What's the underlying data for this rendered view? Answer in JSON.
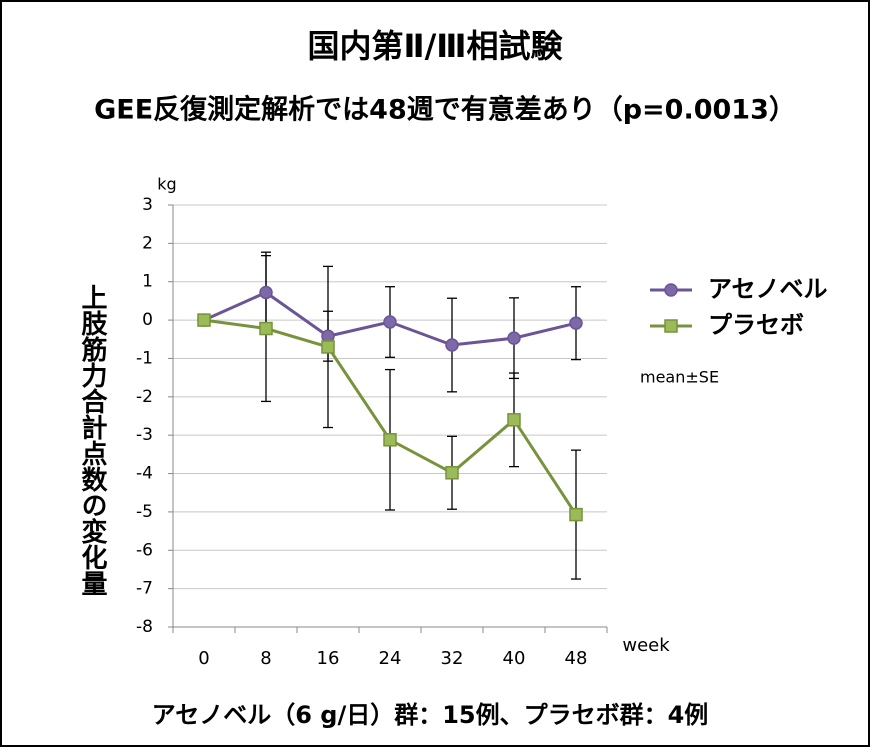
{
  "chart_data": {
    "type": "line",
    "title": "国内第Ⅱ/Ⅲ相試験",
    "subtitle": "GEE反復測定解析では48週で有意差あり（p=0.0013）",
    "y_label": "上肢筋力合計点数の変化量",
    "y_unit": "kg",
    "x_unit": "week",
    "note": "mean±SE",
    "footer": "アセノベル（6 g/日）群：15例、プラセボ群：4例",
    "categories": [
      "0",
      "8",
      "16",
      "24",
      "32",
      "40",
      "48"
    ],
    "series": [
      {
        "name": "アセノベル",
        "color": "#6b5596",
        "marker": "circle",
        "marker_fill": "#7d68a8",
        "values": [
          0,
          0.72,
          -0.42,
          -0.05,
          -0.65,
          -0.47,
          -0.08
        ],
        "errors": [
          0,
          1.05,
          0.65,
          0.92,
          1.22,
          1.05,
          0.95
        ]
      },
      {
        "name": "プラセボ",
        "color": "#77933c",
        "marker": "square",
        "marker_fill": "#9bbb59",
        "values": [
          0,
          -0.22,
          -0.7,
          -3.12,
          -3.98,
          -2.6,
          -5.07
        ],
        "errors": [
          0,
          1.9,
          2.1,
          1.83,
          0.95,
          1.22,
          1.68
        ]
      }
    ],
    "ylim": [
      -8,
      3
    ],
    "yticks": [
      -8,
      -7,
      -6,
      -5,
      -4,
      -3,
      -2,
      -1,
      0,
      1,
      2,
      3
    ],
    "grid": true,
    "legend": "right"
  }
}
